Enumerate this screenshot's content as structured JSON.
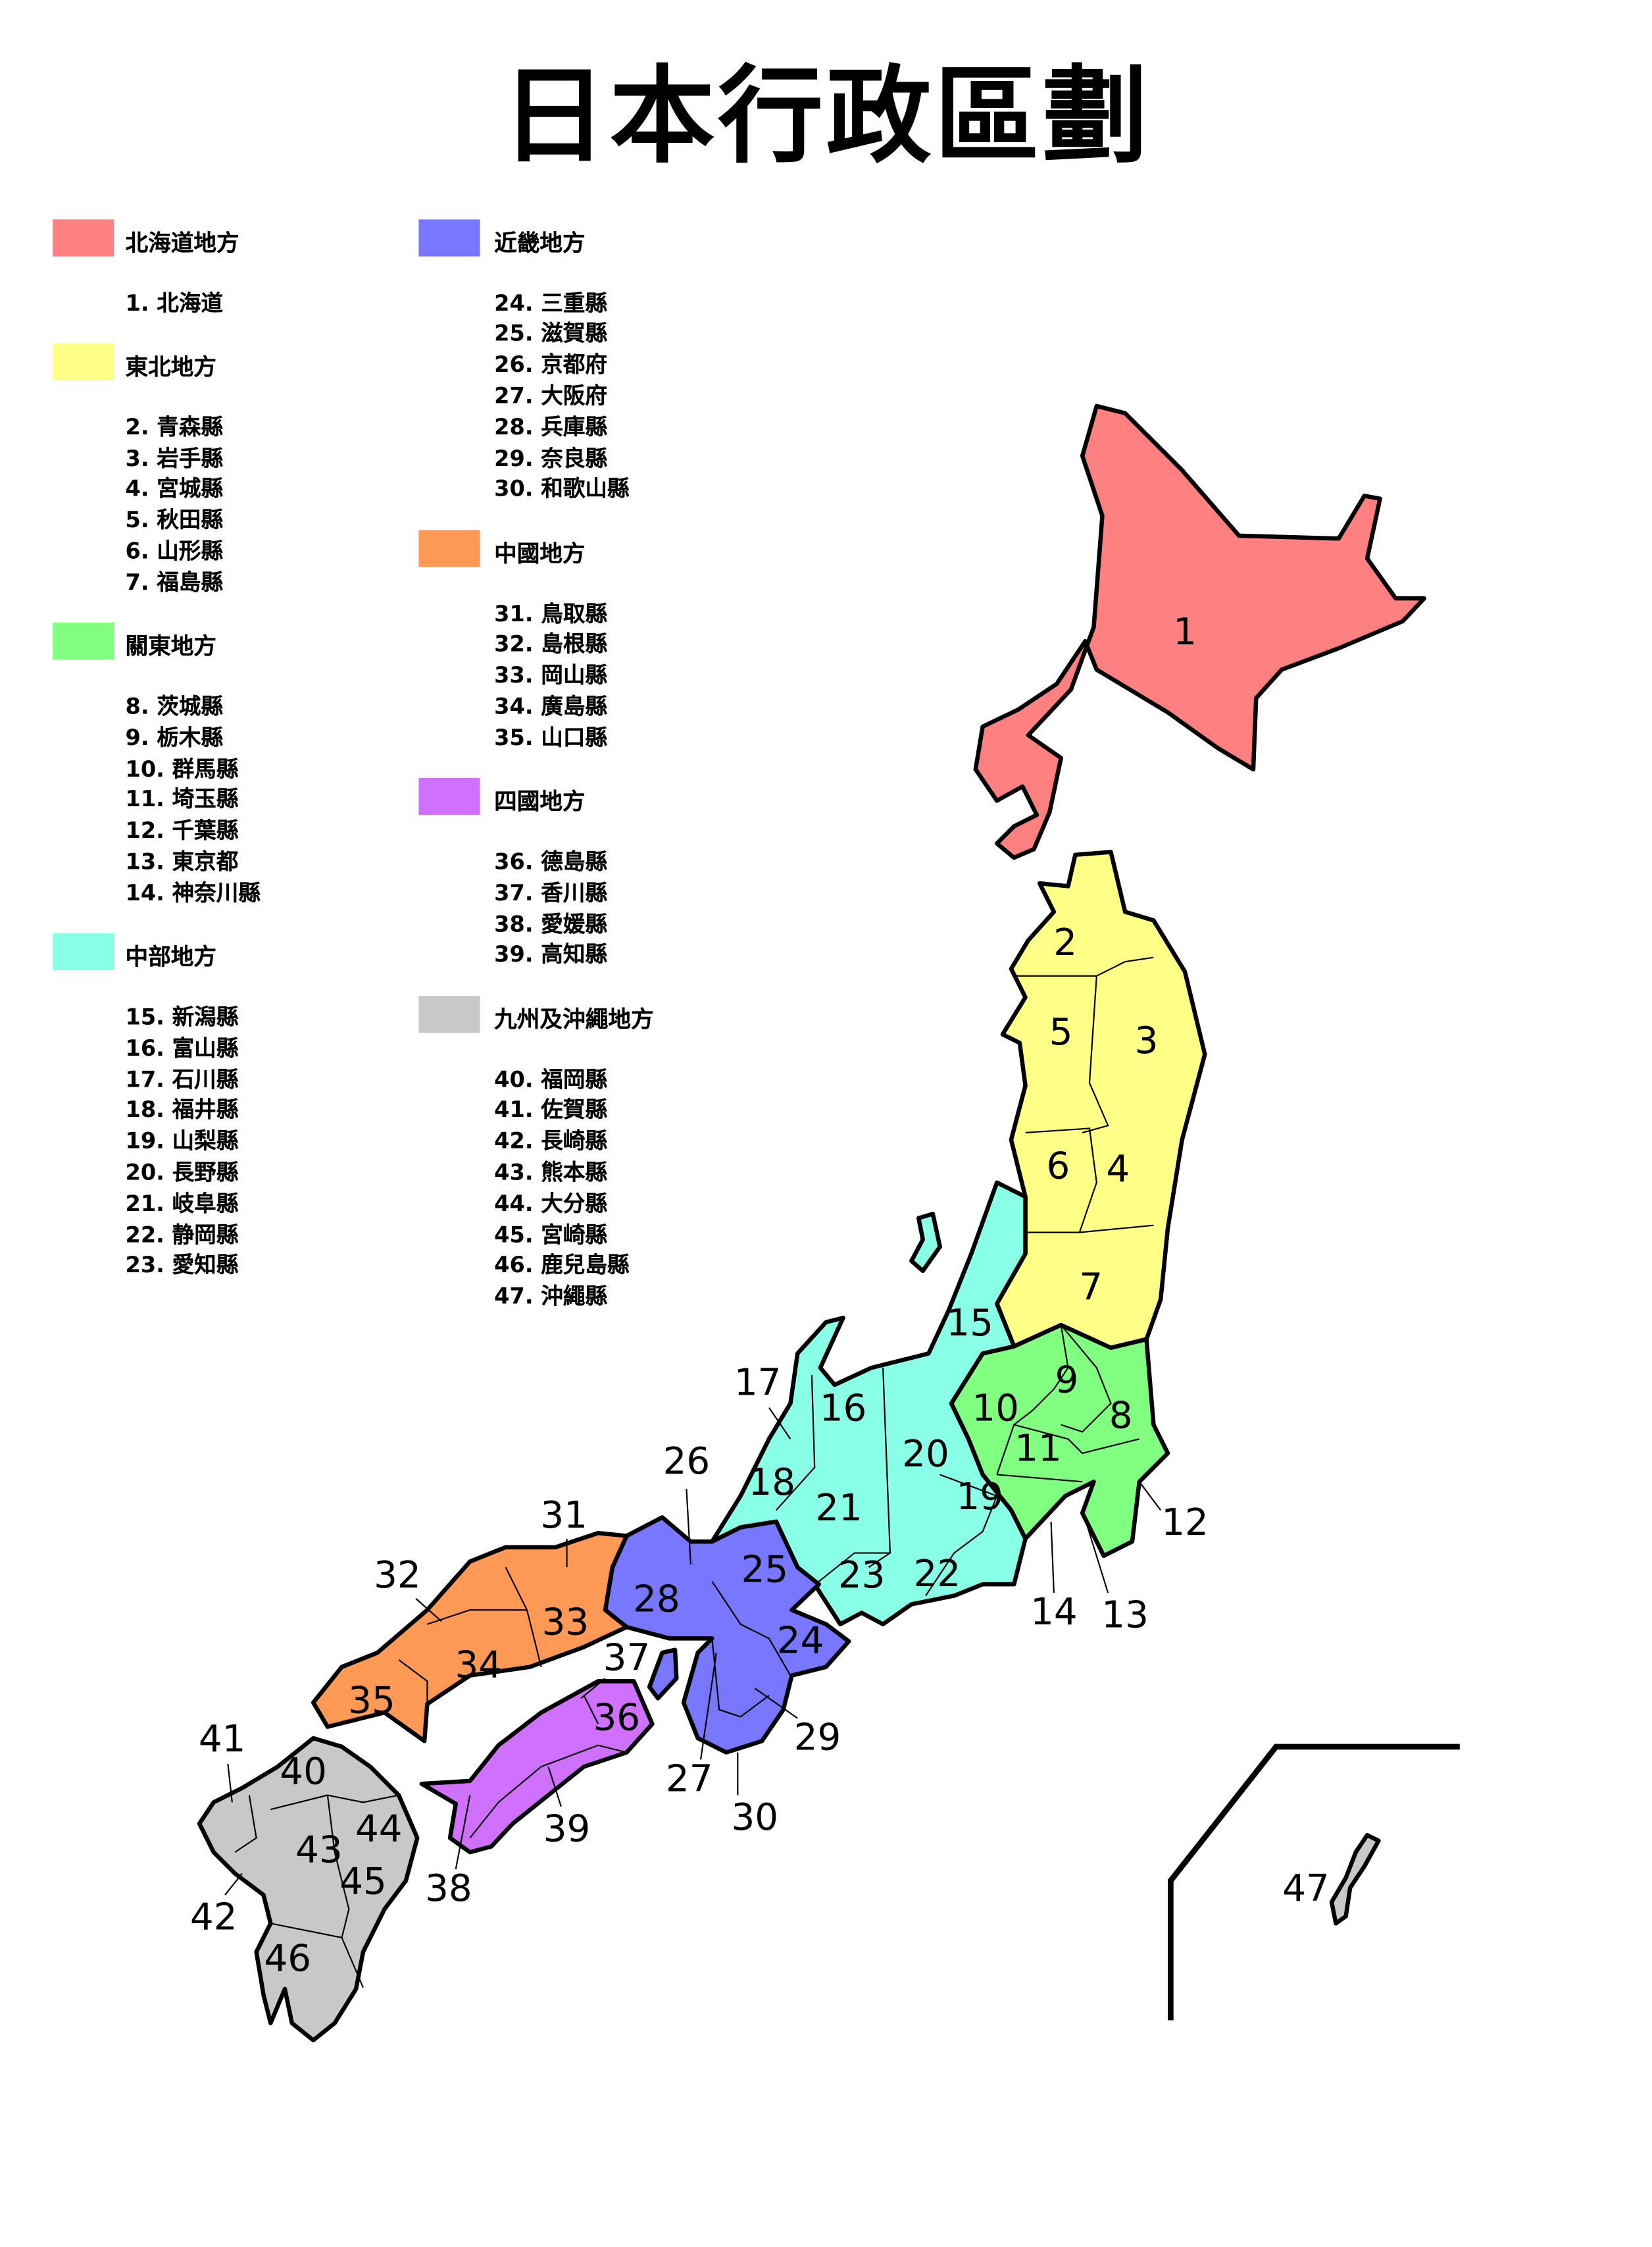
{
  "title": "日本行政區劃",
  "legend": [
    {
      "region": "北海道地方",
      "color": "#ff8080",
      "items": [
        "1. 北海道"
      ]
    },
    {
      "region": "東北地方",
      "color": "#ffff88",
      "items": [
        "2. 青森縣",
        "3. 岩手縣",
        "4. 宮城縣",
        "5. 秋田縣",
        "6. 山形縣",
        "7. 福島縣"
      ]
    },
    {
      "region": "關東地方",
      "color": "#80ff80",
      "items": [
        "8. 茨城縣",
        "9. 栃木縣",
        "10. 群馬縣",
        "11. 埼玉縣",
        "12. 千葉縣",
        "13. 東京都",
        "14. 神奈川縣"
      ]
    },
    {
      "region": "中部地方",
      "color": "#88ffe6",
      "items": [
        "15. 新潟縣",
        "16. 富山縣",
        "17. 石川縣",
        "18. 福井縣",
        "19. 山梨縣",
        "20. 長野縣",
        "21. 岐阜縣",
        "22. 静岡縣",
        "23. 愛知縣"
      ]
    },
    {
      "region": "近畿地方",
      "color": "#7777ff",
      "items": [
        "24. 三重縣",
        "25. 滋賀縣",
        "26. 京都府",
        "27. 大阪府",
        "28. 兵庫縣",
        "29. 奈良縣",
        "30. 和歌山縣"
      ]
    },
    {
      "region": "中國地方",
      "color": "#ff9955",
      "items": [
        "31. 鳥取縣",
        "32. 島根縣",
        "33. 岡山縣",
        "34. 廣島縣",
        "35. 山口縣"
      ]
    },
    {
      "region": "四國地方",
      "color": "#d070ff",
      "items": [
        "36. 德島縣",
        "37. 香川縣",
        "38. 愛媛縣",
        "39. 高知縣"
      ]
    },
    {
      "region": "九州及沖繩地方",
      "color": "#c8c8c8",
      "items": [
        "40. 福岡縣",
        "41. 佐賀縣",
        "42. 長崎縣",
        "43. 熊本縣",
        "44. 大分縣",
        "45. 宮崎縣",
        "46. 鹿兒島縣",
        "47. 沖繩縣"
      ]
    }
  ],
  "map": {
    "labels": [
      "1",
      "2",
      "3",
      "4",
      "5",
      "6",
      "7",
      "8",
      "9",
      "10",
      "11",
      "12",
      "13",
      "14",
      "15",
      "16",
      "17",
      "18",
      "19",
      "20",
      "21",
      "22",
      "23",
      "24",
      "25",
      "26",
      "27",
      "28",
      "29",
      "30",
      "31",
      "32",
      "33",
      "34",
      "35",
      "36",
      "37",
      "38",
      "39",
      "40",
      "41",
      "42",
      "43",
      "44",
      "45",
      "46",
      "47"
    ]
  }
}
